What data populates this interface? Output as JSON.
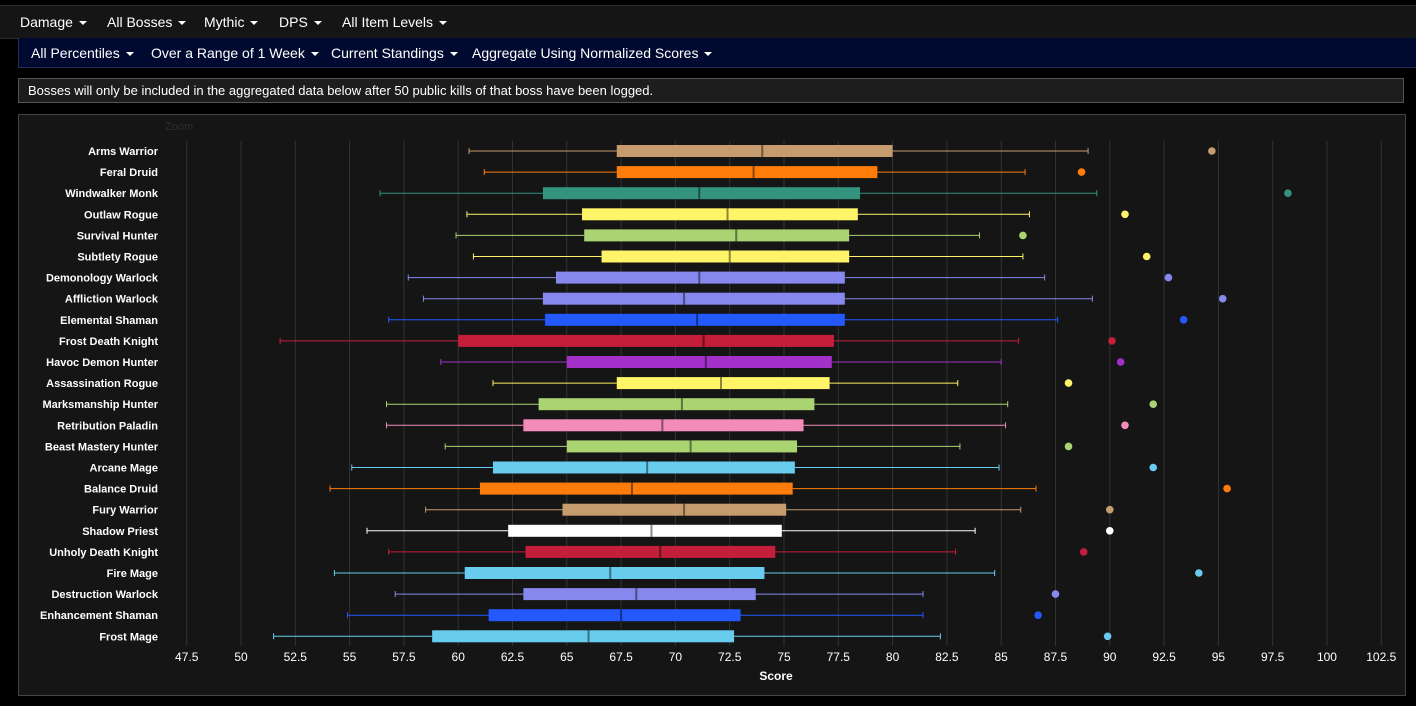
{
  "toolbar1": [
    {
      "label": "Damage"
    },
    {
      "label": "All Bosses"
    },
    {
      "label": "Mythic"
    },
    {
      "label": "DPS"
    },
    {
      "label": "All Item Levels"
    }
  ],
  "toolbar2": [
    {
      "label": "All Percentiles"
    },
    {
      "label": "Over a Range of 1 Week"
    },
    {
      "label": "Current Standings"
    },
    {
      "label": "Aggregate Using Normalized Scores"
    }
  ],
  "notice": "Bosses will only be included in the aggregated data below after 50 public kills of that boss have been logged.",
  "zoom_label": "Zoom",
  "chart_data": {
    "type": "boxplot",
    "xlabel": "Score",
    "xlim": [
      46.5,
      103.5
    ],
    "xticks": [
      47.5,
      50,
      52.5,
      55,
      57.5,
      60,
      62.5,
      65,
      67.5,
      70,
      72.5,
      75,
      77.5,
      80,
      82.5,
      85,
      87.5,
      90,
      92.5,
      95,
      97.5,
      100,
      102.5
    ],
    "grid": true,
    "series": [
      {
        "name": "Arms Warrior",
        "color": "#c69b6d",
        "min": 60.5,
        "q1": 67.3,
        "median": 74.0,
        "q3": 80.0,
        "max": 89.0,
        "outlier": 94.7
      },
      {
        "name": "Feral Druid",
        "color": "#ff7c0a",
        "min": 61.2,
        "q1": 67.3,
        "median": 73.6,
        "q3": 79.3,
        "max": 86.1,
        "outlier": 88.7
      },
      {
        "name": "Windwalker Monk",
        "color": "#33937f",
        "min": 56.4,
        "q1": 63.9,
        "median": 71.1,
        "q3": 78.5,
        "max": 89.4,
        "outlier": 98.2
      },
      {
        "name": "Outlaw Rogue",
        "color": "#fff468",
        "min": 60.4,
        "q1": 65.7,
        "median": 72.4,
        "q3": 78.4,
        "max": 86.3,
        "outlier": 90.7
      },
      {
        "name": "Survival Hunter",
        "color": "#aad372",
        "min": 59.9,
        "q1": 65.8,
        "median": 72.8,
        "q3": 78.0,
        "max": 84.0,
        "outlier": 86.0
      },
      {
        "name": "Subtlety Rogue",
        "color": "#fff468",
        "min": 60.7,
        "q1": 66.6,
        "median": 72.5,
        "q3": 78.0,
        "max": 86.0,
        "outlier": 91.7
      },
      {
        "name": "Demonology Warlock",
        "color": "#8788ee",
        "min": 57.7,
        "q1": 64.5,
        "median": 71.1,
        "q3": 77.8,
        "max": 87.0,
        "outlier": 92.7
      },
      {
        "name": "Affliction Warlock",
        "color": "#8788ee",
        "min": 58.4,
        "q1": 63.9,
        "median": 70.4,
        "q3": 77.8,
        "max": 89.2,
        "outlier": 95.2
      },
      {
        "name": "Elemental Shaman",
        "color": "#2459ff",
        "min": 56.8,
        "q1": 64.0,
        "median": 71.0,
        "q3": 77.8,
        "max": 87.6,
        "outlier": 93.4
      },
      {
        "name": "Frost Death Knight",
        "color": "#c41e3a",
        "min": 51.8,
        "q1": 60.0,
        "median": 71.3,
        "q3": 77.3,
        "max": 85.8,
        "outlier": 90.1
      },
      {
        "name": "Havoc Demon Hunter",
        "color": "#a330c9",
        "min": 59.2,
        "q1": 65.0,
        "median": 71.4,
        "q3": 77.2,
        "max": 85.0,
        "outlier": 90.5
      },
      {
        "name": "Assassination Rogue",
        "color": "#fff468",
        "min": 61.6,
        "q1": 67.3,
        "median": 72.1,
        "q3": 77.1,
        "max": 83.0,
        "outlier": 88.1
      },
      {
        "name": "Marksmanship Hunter",
        "color": "#aad372",
        "min": 56.7,
        "q1": 63.7,
        "median": 70.3,
        "q3": 76.4,
        "max": 85.3,
        "outlier": 92.0
      },
      {
        "name": "Retribution Paladin",
        "color": "#f48cba",
        "min": 56.7,
        "q1": 63.0,
        "median": 69.4,
        "q3": 75.9,
        "max": 85.2,
        "outlier": 90.7
      },
      {
        "name": "Beast Mastery Hunter",
        "color": "#aad372",
        "min": 59.4,
        "q1": 65.0,
        "median": 70.7,
        "q3": 75.6,
        "max": 83.1,
        "outlier": 88.1
      },
      {
        "name": "Arcane Mage",
        "color": "#68ccef",
        "min": 55.1,
        "q1": 61.6,
        "median": 68.7,
        "q3": 75.5,
        "max": 84.9,
        "outlier": 92.0
      },
      {
        "name": "Balance Druid",
        "color": "#ff7c0a",
        "min": 54.1,
        "q1": 61.0,
        "median": 68.0,
        "q3": 75.4,
        "max": 86.6,
        "outlier": 95.4
      },
      {
        "name": "Fury Warrior",
        "color": "#c69b6d",
        "min": 58.5,
        "q1": 64.8,
        "median": 70.4,
        "q3": 75.1,
        "max": 85.9,
        "outlier": 90.0
      },
      {
        "name": "Shadow Priest",
        "color": "#ffffff",
        "min": 55.8,
        "q1": 62.3,
        "median": 68.9,
        "q3": 74.9,
        "max": 83.8,
        "outlier": 90.0
      },
      {
        "name": "Unholy Death Knight",
        "color": "#c41e3a",
        "min": 56.8,
        "q1": 63.1,
        "median": 69.3,
        "q3": 74.6,
        "max": 82.9,
        "outlier": 88.8
      },
      {
        "name": "Fire Mage",
        "color": "#68ccef",
        "min": 54.3,
        "q1": 60.3,
        "median": 67.0,
        "q3": 74.1,
        "max": 84.7,
        "outlier": 94.1
      },
      {
        "name": "Destruction Warlock",
        "color": "#8788ee",
        "min": 57.1,
        "q1": 63.0,
        "median": 68.2,
        "q3": 73.7,
        "max": 81.4,
        "outlier": 87.5
      },
      {
        "name": "Enhancement Shaman",
        "color": "#2459ff",
        "min": 54.9,
        "q1": 61.4,
        "median": 67.5,
        "q3": 73.0,
        "max": 81.4,
        "outlier": 86.7
      },
      {
        "name": "Frost Mage",
        "color": "#68ccef",
        "min": 51.5,
        "q1": 58.8,
        "median": 66.0,
        "q3": 72.7,
        "max": 82.2,
        "outlier": 89.9
      }
    ]
  }
}
